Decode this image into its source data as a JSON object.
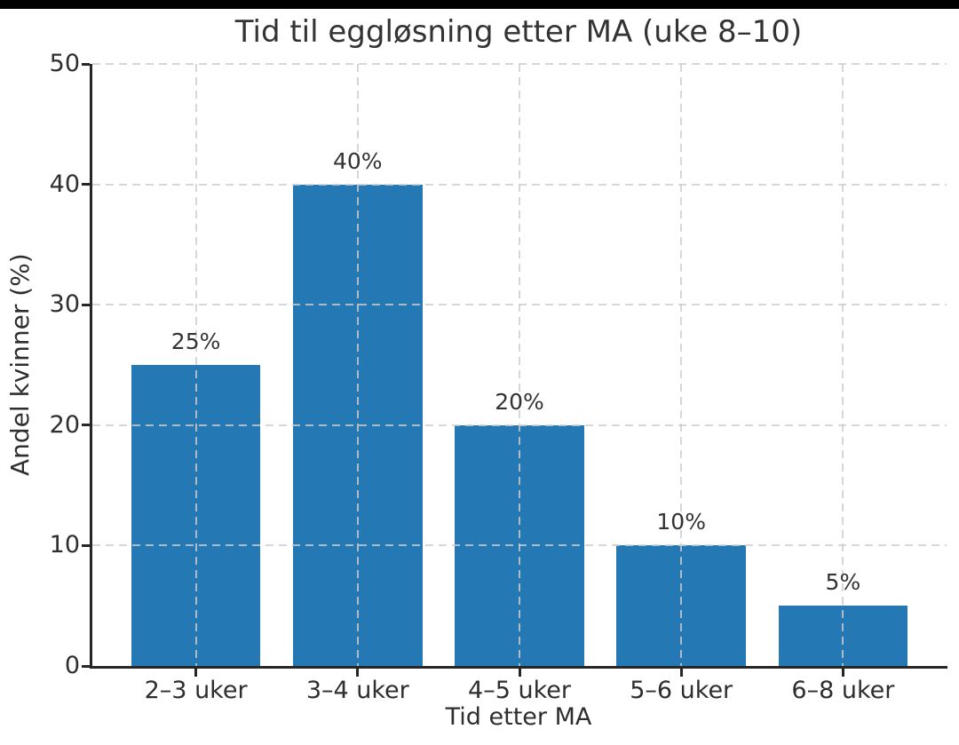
{
  "window": {
    "background_color": "#ffffff",
    "letterbox_color": "#000000"
  },
  "chart_data": {
    "type": "bar",
    "title": "Tid til eggløsning etter MA (uke 8–10)",
    "xlabel": "Tid etter MA",
    "ylabel": "Andel kvinner (%)",
    "categories": [
      "2–3 uker",
      "3–4 uker",
      "4–5 uker",
      "5–6 uker",
      "6–8 uker"
    ],
    "values": [
      25,
      40,
      20,
      10,
      5
    ],
    "bar_labels": [
      "25%",
      "40%",
      "20%",
      "10%",
      "5%"
    ],
    "yticks": [
      0,
      10,
      20,
      30,
      40,
      50
    ],
    "ylim": [
      0,
      50
    ],
    "grid": "dashed horizontal and vertical gridlines, drawn above bars",
    "legend": "none",
    "colors": {
      "bar": "#2478b4",
      "grid": "#cdcdcd",
      "grid_over_bar_opacity": "0.8",
      "text": "#2e2e2e",
      "title_text": "#333333",
      "spine": "#262626"
    }
  }
}
